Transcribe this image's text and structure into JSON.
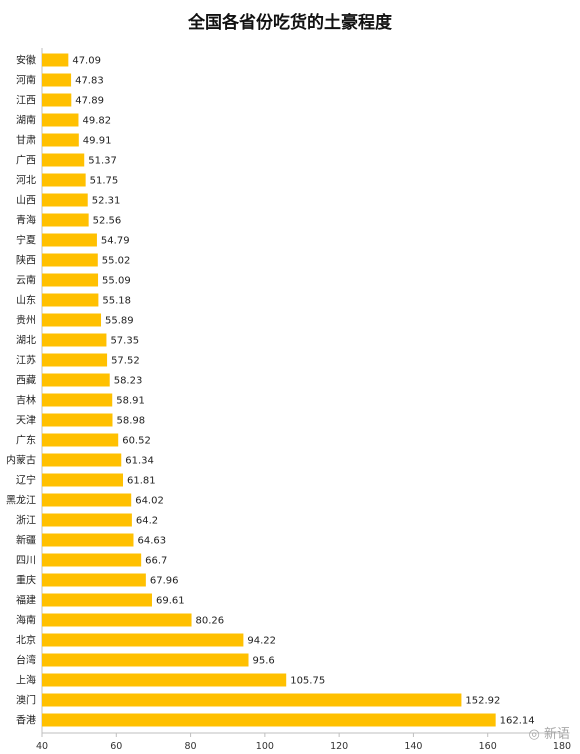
{
  "chart_data": {
    "type": "bar",
    "orientation": "horizontal",
    "title": "全国各省份吃货的土豪程度",
    "xlabel": "",
    "ylabel": "",
    "xlim": [
      40,
      180
    ],
    "x_ticks": [
      40,
      60,
      80,
      100,
      120,
      140,
      160,
      180
    ],
    "bar_color": "#FFC000",
    "grid": false,
    "legend": "none",
    "categories": [
      "安徽",
      "河南",
      "江西",
      "湖南",
      "甘肃",
      "广西",
      "河北",
      "山西",
      "青海",
      "宁夏",
      "陕西",
      "云南",
      "山东",
      "贵州",
      "湖北",
      "江苏",
      "西藏",
      "吉林",
      "天津",
      "广东",
      "内蒙古",
      "辽宁",
      "黑龙江",
      "浙江",
      "新疆",
      "四川",
      "重庆",
      "福建",
      "海南",
      "北京",
      "台湾",
      "上海",
      "澳门",
      "香港"
    ],
    "values": [
      47.09,
      47.83,
      47.89,
      49.82,
      49.91,
      51.37,
      51.75,
      52.31,
      52.56,
      54.79,
      55.02,
      55.09,
      55.18,
      55.89,
      57.35,
      57.52,
      58.23,
      58.91,
      58.98,
      60.52,
      61.34,
      61.81,
      64.02,
      64.2,
      64.63,
      66.7,
      67.96,
      69.61,
      80.26,
      94.22,
      95.6,
      105.75,
      152.92,
      162.14
    ]
  },
  "watermark": {
    "icon": "weibo-icon",
    "text": "新语"
  }
}
